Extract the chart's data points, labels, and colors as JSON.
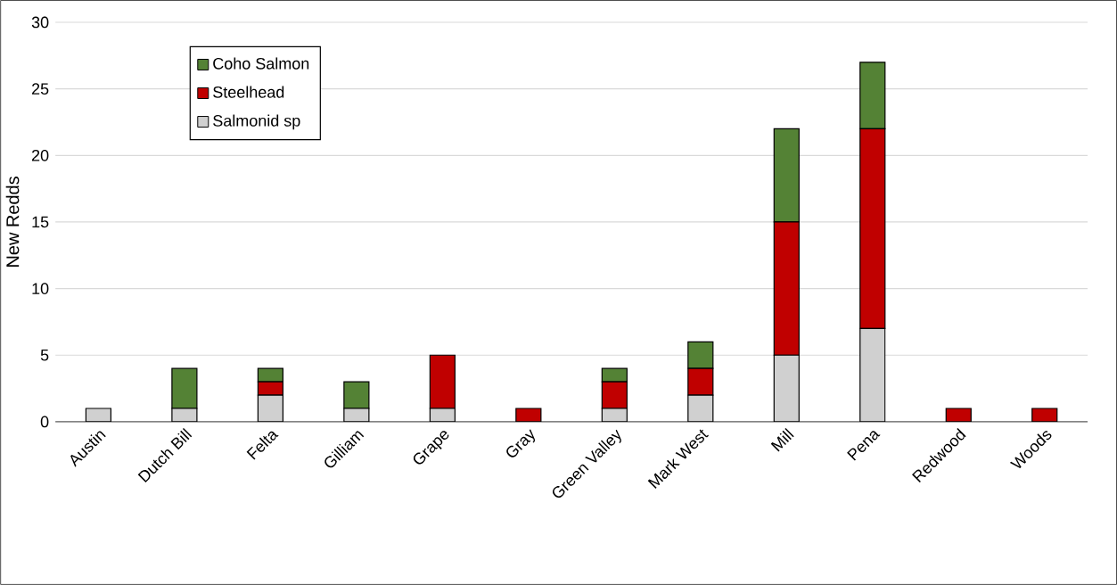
{
  "chart_data": {
    "type": "bar",
    "stacked": true,
    "ylabel": "New Redds",
    "categories": [
      "Austin",
      "Dutch Bill",
      "Felta",
      "Gilliam",
      "Grape",
      "Gray",
      "Green Valley",
      "Mark West",
      "Mill",
      "Pena",
      "Redwood",
      "Woods"
    ],
    "series": [
      {
        "name": "Salmonid sp",
        "color": "#d0d0d0",
        "values": [
          1,
          1,
          2,
          1,
          1,
          0,
          1,
          2,
          5,
          7,
          0,
          0
        ]
      },
      {
        "name": "Steelhead",
        "color": "#c00000",
        "values": [
          0,
          0,
          1,
          0,
          4,
          1,
          2,
          2,
          10,
          15,
          1,
          1
        ]
      },
      {
        "name": "Coho Salmon",
        "color": "#548235",
        "values": [
          0,
          3,
          1,
          2,
          0,
          0,
          1,
          2,
          7,
          5,
          0,
          0
        ]
      }
    ],
    "ylim": [
      0,
      30
    ],
    "yticks": [
      0,
      5,
      10,
      15,
      20,
      25,
      30
    ],
    "grid": "y",
    "legend": "top left"
  }
}
